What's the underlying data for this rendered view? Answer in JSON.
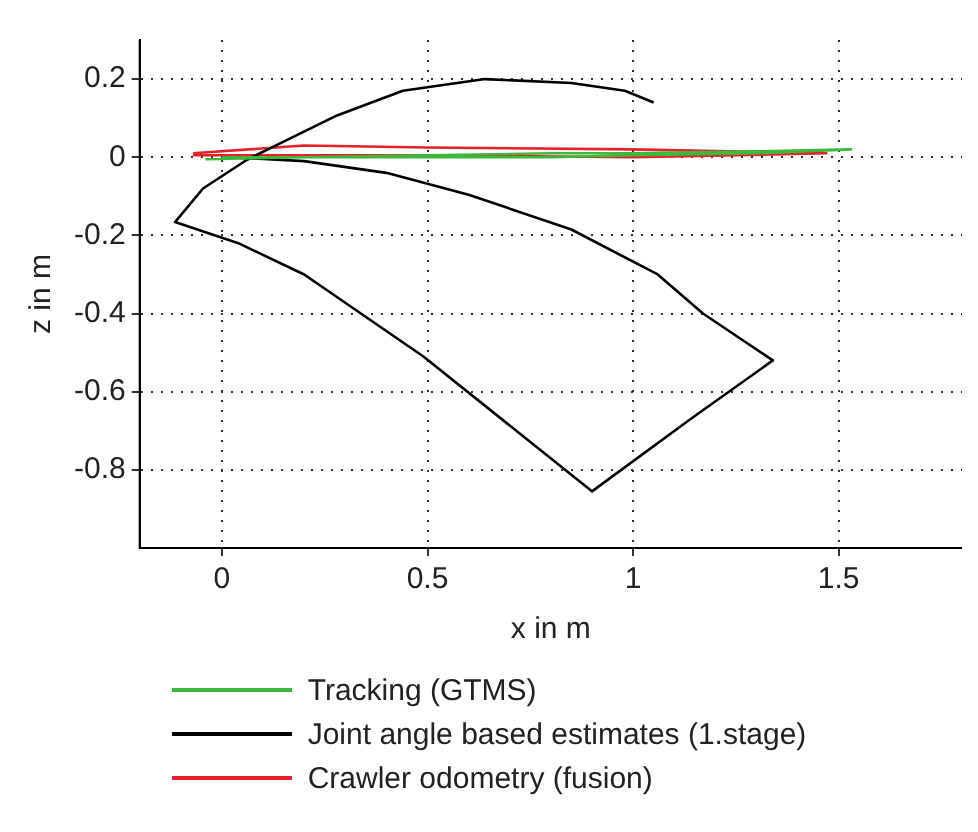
{
  "chart_data": {
    "type": "line",
    "xlabel": "x in m",
    "ylabel": "z in m",
    "xlim": [
      -0.2,
      1.8
    ],
    "ylim": [
      -1,
      0.3
    ],
    "xticks": [
      0,
      0.5,
      1,
      1.5
    ],
    "yticks": [
      -0.8,
      -0.6,
      -0.4,
      -0.2,
      0,
      0.2
    ],
    "grid": true,
    "legend": "bottom",
    "marker": "none",
    "line_style": "solid",
    "series": [
      {
        "name": "Tracking (GTMS)",
        "color": "#3cb83c",
        "x": [
          -0.04,
          0.2,
          0.5,
          0.8,
          1.0,
          1.3,
          1.53,
          1.3,
          1.0,
          0.8,
          0.5,
          0.2,
          0.0
        ],
        "values": [
          -0.005,
          0.0,
          0.005,
          0.01,
          0.01,
          0.015,
          0.02,
          0.01,
          0.005,
          0.0,
          0.0,
          0.0,
          0.0
        ]
      },
      {
        "name": "Joint angle based estimates (1.stage)",
        "color": "#000000",
        "x": [
          0.02,
          0.2,
          0.4,
          0.6,
          0.85,
          1.06,
          1.17,
          1.34,
          1.14,
          0.9,
          0.49,
          0.2,
          0.04,
          -0.114,
          -0.046,
          0.06,
          0.15,
          0.28,
          0.44,
          0.64,
          0.85,
          0.98,
          1.05
        ],
        "values": [
          0.0,
          -0.01,
          -0.04,
          -0.096,
          -0.185,
          -0.3,
          -0.4,
          -0.52,
          -0.67,
          -0.855,
          -0.51,
          -0.3,
          -0.22,
          -0.166,
          -0.08,
          -0.007,
          0.04,
          0.107,
          0.17,
          0.2,
          0.19,
          0.17,
          0.14
        ]
      },
      {
        "name": "Crawler odometry (fusion)",
        "color": "#e8202a",
        "x": [
          -0.07,
          0.2,
          0.5,
          1.0,
          1.47,
          1.0,
          0.5,
          0.2,
          -0.07
        ],
        "values": [
          0.005,
          0.005,
          0.005,
          0.0,
          0.01,
          0.02,
          0.025,
          0.03,
          0.01
        ]
      }
    ]
  }
}
